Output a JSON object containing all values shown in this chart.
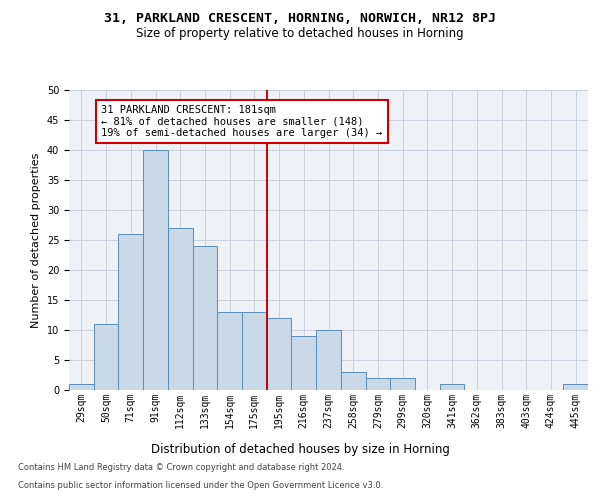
{
  "title_line1": "31, PARKLAND CRESCENT, HORNING, NORWICH, NR12 8PJ",
  "title_line2": "Size of property relative to detached houses in Horning",
  "xlabel": "Distribution of detached houses by size in Horning",
  "ylabel": "Number of detached properties",
  "bar_labels": [
    "29sqm",
    "50sqm",
    "71sqm",
    "91sqm",
    "112sqm",
    "133sqm",
    "154sqm",
    "175sqm",
    "195sqm",
    "216sqm",
    "237sqm",
    "258sqm",
    "279sqm",
    "299sqm",
    "320sqm",
    "341sqm",
    "362sqm",
    "383sqm",
    "403sqm",
    "424sqm",
    "445sqm"
  ],
  "bar_values": [
    1,
    11,
    26,
    40,
    27,
    24,
    13,
    13,
    12,
    9,
    10,
    3,
    2,
    2,
    0,
    1,
    0,
    0,
    0,
    0,
    1
  ],
  "bar_color": "#c9d9e8",
  "bar_edgecolor": "#5a8db5",
  "vline_x": 7.5,
  "vline_color": "#cc0000",
  "annotation_line1": "31 PARKLAND CRESCENT: 181sqm",
  "annotation_line2": "← 81% of detached houses are smaller (148)",
  "annotation_line3": "19% of semi-detached houses are larger (34) →",
  "annotation_box_color": "#cc0000",
  "ylim": [
    0,
    50
  ],
  "yticks": [
    0,
    5,
    10,
    15,
    20,
    25,
    30,
    35,
    40,
    45,
    50
  ],
  "grid_color": "#c8d0dc",
  "background_color": "#eef2f7",
  "footer_line1": "Contains HM Land Registry data © Crown copyright and database right 2024.",
  "footer_line2": "Contains public sector information licensed under the Open Government Licence v3.0.",
  "title_fontsize": 9.5,
  "subtitle_fontsize": 8.5,
  "tick_fontsize": 7,
  "ylabel_fontsize": 8,
  "xlabel_fontsize": 8.5,
  "annotation_fontsize": 7.5,
  "footer_fontsize": 6.0
}
